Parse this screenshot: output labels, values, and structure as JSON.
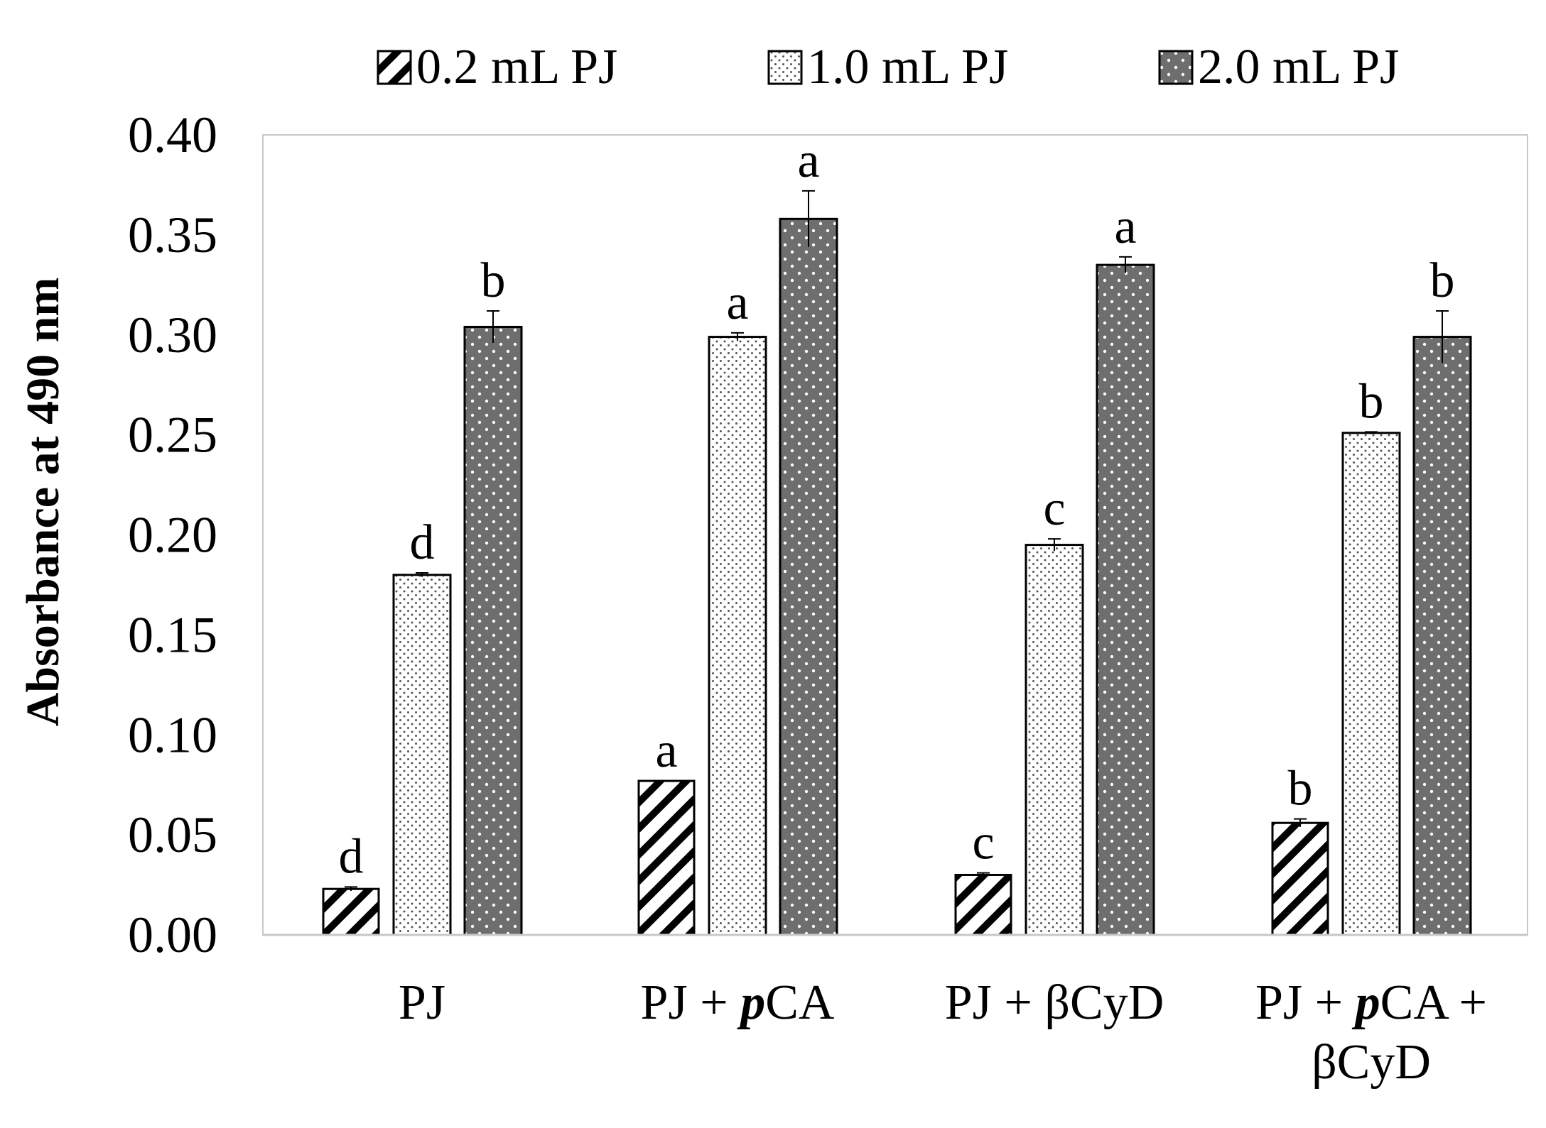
{
  "chart_data": {
    "type": "bar",
    "title": "",
    "xlabel": "",
    "ylabel": "Absorbance at 490 nm",
    "ylim": [
      0,
      0.4
    ],
    "yticks": [
      "0.00",
      "0.05",
      "0.10",
      "0.15",
      "0.20",
      "0.25",
      "0.30",
      "0.35",
      "0.40"
    ],
    "legend_position": "top",
    "categories": [
      {
        "name": "PJ",
        "lines": [
          [
            "PJ"
          ]
        ]
      },
      {
        "name": "PJ + pCA",
        "lines": [
          [
            "PJ + ",
            "p",
            "CA"
          ]
        ]
      },
      {
        "name": "PJ + βCyD",
        "lines": [
          [
            "PJ + βCyD"
          ]
        ]
      },
      {
        "name": "PJ + pCA + βCyD",
        "lines": [
          [
            "PJ + ",
            "p",
            "CA +"
          ],
          [
            "βCyD"
          ]
        ]
      }
    ],
    "series": [
      {
        "name": "0.2 mL PJ",
        "pattern": "hatch",
        "values": [
          0.023,
          0.077,
          0.03,
          0.056
        ],
        "errors": [
          0.001,
          0.0,
          0.001,
          0.002
        ],
        "letters": [
          "d",
          "a",
          "c",
          "b"
        ]
      },
      {
        "name": "1.0 mL PJ",
        "pattern": "light-dots",
        "values": [
          0.18,
          0.299,
          0.195,
          0.251
        ],
        "errors": [
          0.001,
          0.002,
          0.003,
          0.0005
        ],
        "letters": [
          "d",
          "a",
          "c",
          "b"
        ]
      },
      {
        "name": "2.0 mL PJ",
        "pattern": "dark-dots",
        "values": [
          0.304,
          0.358,
          0.335,
          0.299
        ],
        "errors": [
          0.008,
          0.014,
          0.004,
          0.013
        ],
        "letters": [
          "b",
          "a",
          "a",
          "b"
        ]
      }
    ],
    "colors": {
      "bar_stroke": "#000000",
      "light_fill": "#ececec",
      "dark_fill": "#6e6e6e",
      "axis": "#c8c8c8"
    }
  }
}
